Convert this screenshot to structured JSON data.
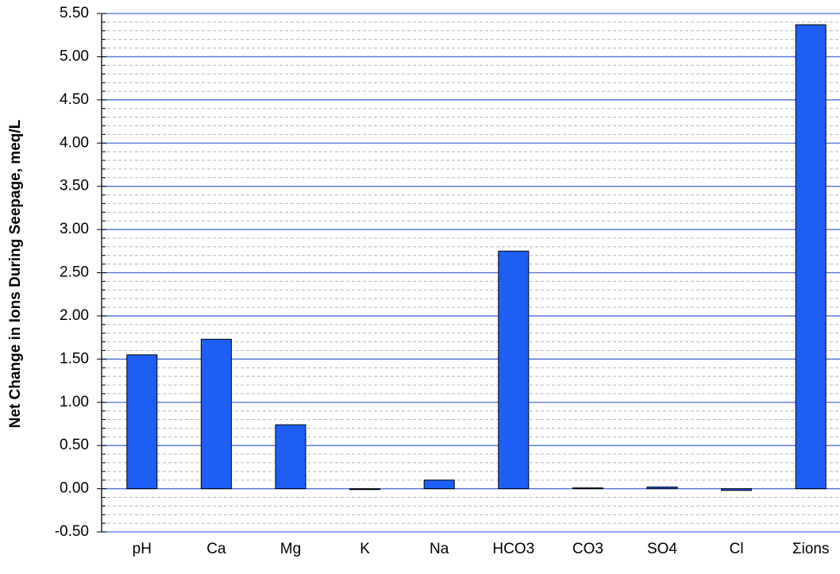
{
  "chart_data": {
    "type": "bar",
    "y_label": "Net Change in Ions During Seepage, meq/L",
    "categories": [
      "pH",
      "Ca",
      "Mg",
      "K",
      "Na",
      "HCO3",
      "CO3",
      "SO4",
      "Cl",
      "Σions"
    ],
    "values": [
      1.55,
      1.73,
      0.74,
      -0.01,
      0.1,
      2.75,
      0.01,
      0.02,
      -0.02,
      5.37
    ],
    "color": "#1f5ef5",
    "ylim": [
      -0.5,
      5.5
    ],
    "yticks": [
      {
        "value": -0.5,
        "label": "-0.50"
      },
      {
        "value": 0,
        "label": "0.00"
      },
      {
        "value": 0.5,
        "label": "0.50"
      },
      {
        "value": 1,
        "label": "1.00"
      },
      {
        "value": 1.5,
        "label": "1.50"
      },
      {
        "value": 2,
        "label": "2.00"
      },
      {
        "value": 2.5,
        "label": "2.50"
      },
      {
        "value": 3,
        "label": "3.00"
      },
      {
        "value": 3.5,
        "label": "3.50"
      },
      {
        "value": 4,
        "label": "4.00"
      },
      {
        "value": 4.5,
        "label": "4.50"
      },
      {
        "value": 5,
        "label": "5.00"
      },
      {
        "value": 5.5,
        "label": "5.50"
      }
    ],
    "grid": true,
    "minor_grid": true
  }
}
